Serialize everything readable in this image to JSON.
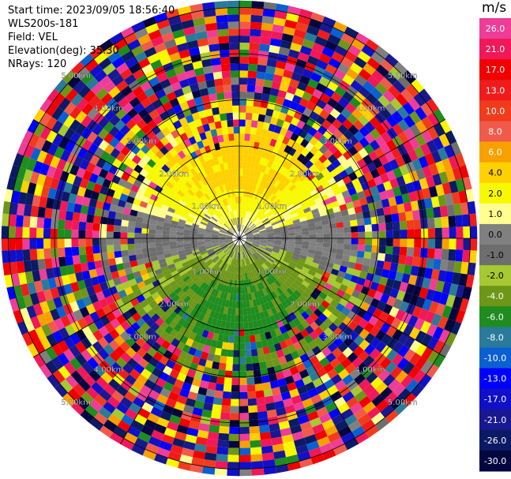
{
  "header": {
    "start_time": "Start time: 2023/09/05 18:56:40",
    "instrument": "WLS200s-181",
    "field": "Field: VEL",
    "elevation": "Elevation(deg): 35.30",
    "nrays": "NRays: 120"
  },
  "colorbar": {
    "unit": "m/s",
    "ticks": [
      "26.0",
      "21.0",
      "17.0",
      "13.0",
      "10.0",
      "8.0",
      "6.0",
      "4.0",
      "2.0",
      "1.0",
      "0.0",
      "-1.0",
      "-2.0",
      "-4.0",
      "-6.0",
      "-8.0",
      "-10.0",
      "-13.0",
      "-17.0",
      "-21.0",
      "-26.0",
      "-30.0"
    ],
    "colors": [
      "#ee3d96",
      "#f01858",
      "#f00000",
      "#f01c1c",
      "#f03c1c",
      "#f05a4a",
      "#f8a000",
      "#ffd000",
      "#f8f800",
      "#ffff90",
      "#808080",
      "#6e6e6e",
      "#a6c832",
      "#6e9618",
      "#1e8c1e",
      "#2a7a9a",
      "#0a60d0",
      "#0000ff",
      "#1010c8",
      "#181890",
      "#0b1a64",
      "#050540"
    ]
  },
  "chart_data": {
    "type": "heatmap",
    "projection": "polar-ppi",
    "field": "VEL",
    "units": "m/s",
    "nrays": 120,
    "range_rings_km": [
      1.0,
      2.0,
      3.0,
      4.0,
      5.0
    ],
    "ring_labels": [
      "1.00km",
      "2.00km",
      "3.00km",
      "4.00km",
      "5.00km"
    ],
    "grid": true,
    "color_range": [
      -30.0,
      30.0
    ],
    "pattern": {
      "near_north": "positive velocities 1.0 to 6.0 m/s",
      "near_south": "negative velocities -2.0 to -8.0 m/s",
      "near_east_west": "approximately 0.0 m/s",
      "far_range": "noise spanning full colour range"
    }
  }
}
